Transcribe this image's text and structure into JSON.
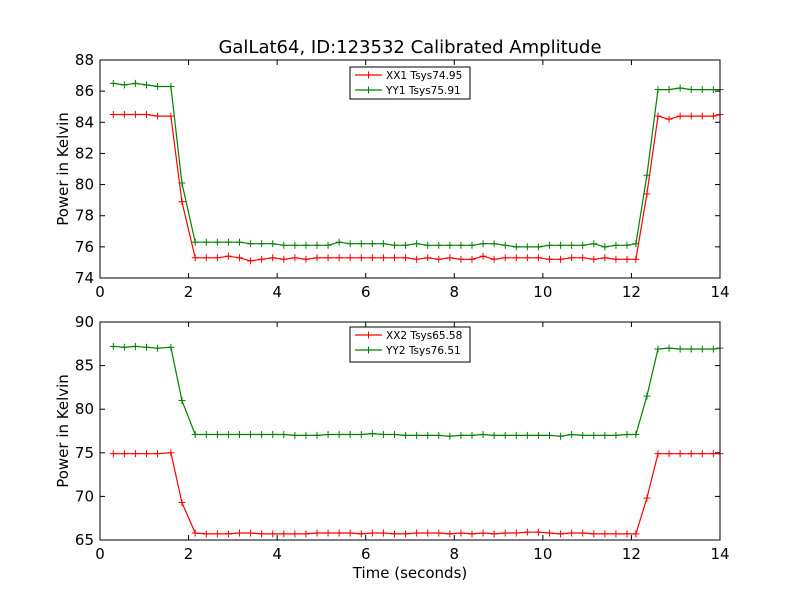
{
  "chart_data": [
    {
      "type": "line",
      "title": "GalLat64, ID:123532 Calibrated Amplitude",
      "xlabel": "",
      "ylabel": "Power in Kelvin",
      "xlim": [
        0,
        14
      ],
      "ylim": [
        74,
        88
      ],
      "xticks": [
        "0",
        "2",
        "4",
        "6",
        "8",
        "10",
        "12",
        "14"
      ],
      "yticks": [
        "74",
        "76",
        "78",
        "80",
        "82",
        "84",
        "86",
        "88"
      ],
      "legend_position": "top-center",
      "x": [
        0.3,
        0.55,
        0.8,
        1.05,
        1.3,
        1.6,
        1.85,
        2.15,
        2.4,
        2.65,
        2.9,
        3.15,
        3.4,
        3.65,
        3.9,
        4.15,
        4.4,
        4.65,
        4.9,
        5.15,
        5.4,
        5.65,
        5.9,
        6.15,
        6.4,
        6.65,
        6.9,
        7.15,
        7.4,
        7.65,
        7.9,
        8.15,
        8.4,
        8.65,
        8.9,
        9.15,
        9.4,
        9.65,
        9.9,
        10.15,
        10.4,
        10.65,
        10.9,
        11.15,
        11.4,
        11.65,
        11.9,
        12.1,
        12.35,
        12.6,
        12.85,
        13.1,
        13.35,
        13.6,
        13.85,
        14.0
      ],
      "series": [
        {
          "name": "XX1 Tsys74.95",
          "color": "#ff0000",
          "values": [
            84.5,
            84.5,
            84.5,
            84.5,
            84.4,
            84.4,
            78.9,
            75.3,
            75.3,
            75.3,
            75.4,
            75.3,
            75.1,
            75.2,
            75.3,
            75.2,
            75.3,
            75.2,
            75.3,
            75.3,
            75.3,
            75.3,
            75.3,
            75.3,
            75.3,
            75.3,
            75.3,
            75.2,
            75.3,
            75.2,
            75.3,
            75.2,
            75.2,
            75.4,
            75.2,
            75.3,
            75.3,
            75.3,
            75.3,
            75.2,
            75.2,
            75.3,
            75.3,
            75.2,
            75.3,
            75.2,
            75.2,
            75.2,
            79.4,
            84.4,
            84.2,
            84.4,
            84.4,
            84.4,
            84.4,
            84.5
          ]
        },
        {
          "name": "YY1 Tsys75.91",
          "color": "#008000",
          "values": [
            86.5,
            86.4,
            86.5,
            86.4,
            86.3,
            86.3,
            80.1,
            76.3,
            76.3,
            76.3,
            76.3,
            76.3,
            76.2,
            76.2,
            76.2,
            76.1,
            76.1,
            76.1,
            76.1,
            76.1,
            76.3,
            76.2,
            76.2,
            76.2,
            76.2,
            76.1,
            76.1,
            76.2,
            76.1,
            76.1,
            76.1,
            76.1,
            76.1,
            76.2,
            76.2,
            76.1,
            76.0,
            76.0,
            76.0,
            76.1,
            76.1,
            76.1,
            76.1,
            76.2,
            76.0,
            76.1,
            76.1,
            76.2,
            80.6,
            86.1,
            86.1,
            86.2,
            86.1,
            86.1,
            86.1,
            86.1
          ]
        }
      ]
    },
    {
      "type": "line",
      "title": "",
      "xlabel": "Time (seconds)",
      "ylabel": "Power in Kelvin",
      "xlim": [
        0,
        14
      ],
      "ylim": [
        65,
        90
      ],
      "xticks": [
        "0",
        "2",
        "4",
        "6",
        "8",
        "10",
        "12",
        "14"
      ],
      "yticks": [
        "65",
        "70",
        "75",
        "80",
        "85",
        "90"
      ],
      "legend_position": "top-center",
      "x": [
        0.3,
        0.55,
        0.8,
        1.05,
        1.3,
        1.6,
        1.85,
        2.15,
        2.4,
        2.65,
        2.9,
        3.15,
        3.4,
        3.65,
        3.9,
        4.15,
        4.4,
        4.65,
        4.9,
        5.15,
        5.4,
        5.65,
        5.9,
        6.15,
        6.4,
        6.65,
        6.9,
        7.15,
        7.4,
        7.65,
        7.9,
        8.15,
        8.4,
        8.65,
        8.9,
        9.15,
        9.4,
        9.65,
        9.9,
        10.15,
        10.4,
        10.65,
        10.9,
        11.15,
        11.4,
        11.65,
        11.9,
        12.1,
        12.35,
        12.6,
        12.85,
        13.1,
        13.35,
        13.6,
        13.85,
        14.0
      ],
      "series": [
        {
          "name": "XX2 Tsys65.58",
          "color": "#ff0000",
          "values": [
            74.9,
            74.9,
            74.9,
            74.9,
            74.9,
            75.0,
            69.3,
            65.8,
            65.7,
            65.7,
            65.7,
            65.8,
            65.8,
            65.7,
            65.7,
            65.7,
            65.7,
            65.7,
            65.8,
            65.8,
            65.8,
            65.8,
            65.7,
            65.8,
            65.8,
            65.7,
            65.7,
            65.8,
            65.8,
            65.8,
            65.7,
            65.8,
            65.7,
            65.8,
            65.7,
            65.8,
            65.8,
            65.9,
            65.9,
            65.8,
            65.7,
            65.8,
            65.8,
            65.7,
            65.7,
            65.7,
            65.7,
            65.7,
            69.8,
            74.9,
            74.9,
            74.9,
            74.9,
            74.9,
            74.9,
            74.9
          ]
        },
        {
          "name": "YY2 Tsys76.51",
          "color": "#008000",
          "values": [
            87.2,
            87.1,
            87.2,
            87.1,
            87.0,
            87.1,
            81.0,
            77.1,
            77.1,
            77.1,
            77.1,
            77.1,
            77.1,
            77.1,
            77.1,
            77.1,
            77.0,
            77.0,
            77.0,
            77.1,
            77.1,
            77.1,
            77.1,
            77.2,
            77.1,
            77.1,
            77.0,
            77.0,
            77.0,
            77.0,
            76.9,
            77.0,
            77.0,
            77.1,
            77.0,
            77.0,
            77.0,
            77.0,
            77.0,
            77.0,
            76.9,
            77.1,
            77.0,
            77.0,
            77.0,
            77.0,
            77.1,
            77.1,
            81.5,
            86.9,
            87.0,
            86.9,
            86.9,
            86.9,
            86.9,
            87.0
          ]
        }
      ]
    }
  ]
}
